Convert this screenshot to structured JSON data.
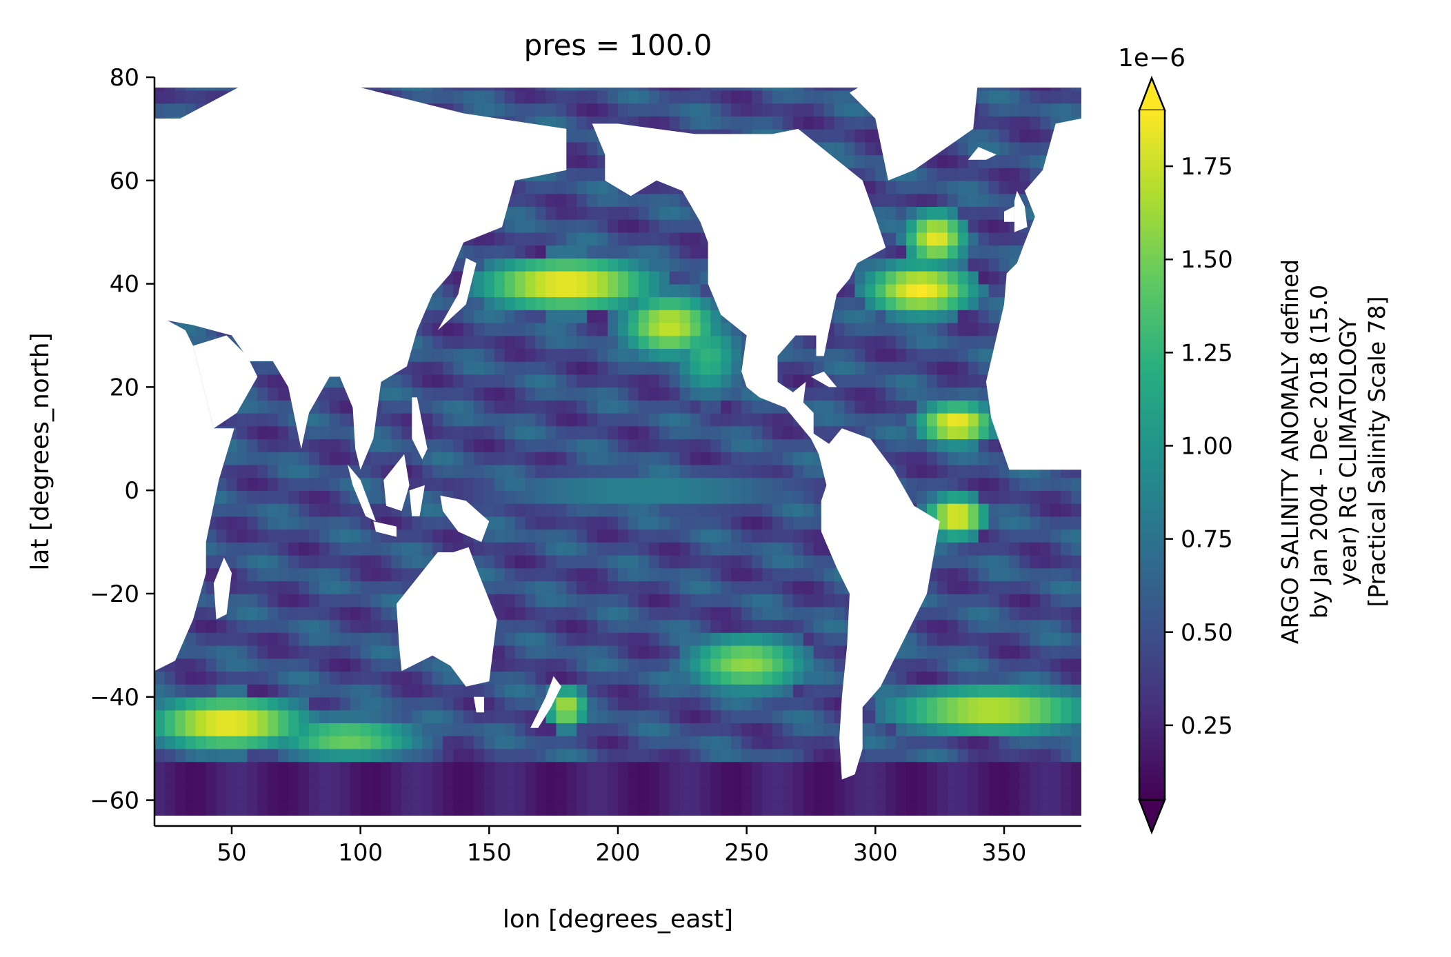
{
  "chart_data": {
    "type": "heatmap",
    "title": "pres = 100.0",
    "xlabel": "lon [degrees_east]",
    "ylabel": "lat [degrees_north]",
    "xlim": [
      20,
      380
    ],
    "ylim": [
      -65,
      80
    ],
    "xticks": [
      50,
      100,
      150,
      200,
      250,
      300,
      350
    ],
    "yticks": [
      -60,
      -40,
      -20,
      0,
      20,
      40,
      60,
      80
    ],
    "grid": false,
    "colorbar": {
      "label_lines": [
        "ARGO SALINITY ANOMALY defined",
        "by Jan 2004 - Dec 2018 (15.0",
        "year) RG CLIMATOLOGY",
        "[Practical Salinity Scale 78]"
      ],
      "multiplier": "1e−6",
      "ticks": [
        0.25,
        0.5,
        0.75,
        1.0,
        1.25,
        1.5,
        1.75
      ],
      "tick_labels": [
        "0.25",
        "0.50",
        "0.75",
        "1.00",
        "1.25",
        "1.50",
        "1.75"
      ],
      "vmin": 0.05,
      "vmax": 1.9,
      "extend": "both",
      "colormap": "viridis"
    },
    "land_masses": [
      {
        "name": "Africa",
        "polygon": [
          [
            -17,
            21
          ],
          [
            -10,
            36
          ],
          [
            10,
            37
          ],
          [
            32,
            31
          ],
          [
            35,
            28
          ],
          [
            43,
            12
          ],
          [
            51,
            12
          ],
          [
            45,
            2
          ],
          [
            40,
            -10
          ],
          [
            40,
            -16
          ],
          [
            35,
            -25
          ],
          [
            28,
            -33
          ],
          [
            20,
            -35
          ],
          [
            18,
            -30
          ],
          [
            12,
            -18
          ],
          [
            9,
            -1
          ],
          [
            -8,
            4
          ],
          [
            -17,
            14
          ]
        ]
      },
      {
        "name": "Madagascar",
        "polygon": [
          [
            47,
            -13
          ],
          [
            50,
            -16
          ],
          [
            48,
            -24
          ],
          [
            44,
            -25
          ],
          [
            43,
            -18
          ]
        ]
      },
      {
        "name": "Arabia",
        "polygon": [
          [
            35,
            28
          ],
          [
            48,
            30
          ],
          [
            56,
            26
          ],
          [
            60,
            22
          ],
          [
            52,
            15
          ],
          [
            43,
            12
          ]
        ]
      },
      {
        "name": "Eurasia",
        "polygon": [
          [
            -10,
            36
          ],
          [
            -10,
            72
          ],
          [
            30,
            72
          ],
          [
            60,
            80
          ],
          [
            100,
            78
          ],
          [
            140,
            73
          ],
          [
            180,
            70
          ],
          [
            180,
            62
          ],
          [
            160,
            60
          ],
          [
            155,
            51
          ],
          [
            140,
            48
          ],
          [
            135,
            42
          ],
          [
            128,
            38
          ],
          [
            122,
            31
          ],
          [
            118,
            24
          ],
          [
            108,
            21
          ],
          [
            105,
            10
          ],
          [
            100,
            4
          ],
          [
            98,
            8
          ],
          [
            97,
            16
          ],
          [
            92,
            22
          ],
          [
            88,
            22
          ],
          [
            80,
            15
          ],
          [
            77,
            8
          ],
          [
            72,
            20
          ],
          [
            66,
            25
          ],
          [
            57,
            25
          ],
          [
            50,
            30
          ],
          [
            35,
            32
          ]
        ]
      },
      {
        "name": "Japan",
        "polygon": [
          [
            130,
            31
          ],
          [
            141,
            36
          ],
          [
            145,
            44
          ],
          [
            141,
            45
          ],
          [
            138,
            38
          ]
        ]
      },
      {
        "name": "Borneo",
        "polygon": [
          [
            109,
            2
          ],
          [
            117,
            7
          ],
          [
            119,
            1
          ],
          [
            116,
            -4
          ],
          [
            110,
            -3
          ]
        ]
      },
      {
        "name": "Sumatra",
        "polygon": [
          [
            95,
            5
          ],
          [
            100,
            2
          ],
          [
            106,
            -6
          ],
          [
            102,
            -5
          ],
          [
            97,
            1
          ]
        ]
      },
      {
        "name": "Java",
        "polygon": [
          [
            105,
            -6
          ],
          [
            114,
            -7
          ],
          [
            114,
            -9
          ],
          [
            106,
            -8
          ]
        ]
      },
      {
        "name": "Sulawesi",
        "polygon": [
          [
            119,
            0
          ],
          [
            125,
            1
          ],
          [
            123,
            -5
          ],
          [
            120,
            -5
          ]
        ]
      },
      {
        "name": "Philippines",
        "polygon": [
          [
            120,
            18
          ],
          [
            122,
            18
          ],
          [
            126,
            8
          ],
          [
            124,
            6
          ],
          [
            120,
            10
          ]
        ]
      },
      {
        "name": "New Guinea",
        "polygon": [
          [
            131,
            -1
          ],
          [
            141,
            -2
          ],
          [
            150,
            -6
          ],
          [
            147,
            -10
          ],
          [
            138,
            -8
          ],
          [
            132,
            -4
          ]
        ]
      },
      {
        "name": "Australia",
        "polygon": [
          [
            114,
            -22
          ],
          [
            122,
            -17
          ],
          [
            130,
            -12
          ],
          [
            136,
            -12
          ],
          [
            142,
            -11
          ],
          [
            145,
            -15
          ],
          [
            153,
            -25
          ],
          [
            150,
            -37
          ],
          [
            141,
            -38
          ],
          [
            135,
            -34
          ],
          [
            128,
            -32
          ],
          [
            116,
            -35
          ],
          [
            115,
            -30
          ]
        ]
      },
      {
        "name": "Tasmania",
        "polygon": [
          [
            144,
            -40
          ],
          [
            148,
            -40
          ],
          [
            148,
            -43
          ],
          [
            145,
            -43
          ]
        ]
      },
      {
        "name": "New Zealand",
        "polygon": [
          [
            166,
            -46
          ],
          [
            172,
            -40
          ],
          [
            175,
            -36
          ],
          [
            178,
            -38
          ],
          [
            174,
            -42
          ],
          [
            169,
            -46
          ]
        ]
      },
      {
        "name": "Antarctica",
        "polygon": [
          [
            20,
            -65
          ],
          [
            380,
            -65
          ],
          [
            380,
            -63
          ],
          [
            20,
            -63
          ]
        ]
      },
      {
        "name": "Americas",
        "polygon": [
          [
            190,
            71
          ],
          [
            200,
            71
          ],
          [
            230,
            69
          ],
          [
            260,
            69
          ],
          [
            270,
            70
          ],
          [
            280,
            66
          ],
          [
            295,
            60
          ],
          [
            300,
            53
          ],
          [
            304,
            47
          ],
          [
            293,
            44
          ],
          [
            290,
            41
          ],
          [
            285,
            38
          ],
          [
            282,
            31
          ],
          [
            280,
            26
          ],
          [
            277,
            26
          ],
          [
            277,
            30
          ],
          [
            269,
            30
          ],
          [
            262,
            26
          ],
          [
            262,
            21
          ],
          [
            268,
            19
          ],
          [
            273,
            21
          ],
          [
            272,
            17
          ],
          [
            276,
            15
          ],
          [
            276,
            11
          ],
          [
            282,
            9
          ],
          [
            287,
            12
          ],
          [
            298,
            10
          ],
          [
            307,
            4
          ],
          [
            315,
            -3
          ],
          [
            325,
            -6
          ],
          [
            320,
            -20
          ],
          [
            313,
            -27
          ],
          [
            302,
            -38
          ],
          [
            295,
            -42
          ],
          [
            295,
            -50
          ],
          [
            292,
            -55
          ],
          [
            287,
            -56
          ],
          [
            286,
            -48
          ],
          [
            287,
            -40
          ],
          [
            289,
            -30
          ],
          [
            290,
            -20
          ],
          [
            285,
            -15
          ],
          [
            279,
            -8
          ],
          [
            279,
            -2
          ],
          [
            281,
            1
          ],
          [
            278,
            7
          ],
          [
            275,
            10
          ],
          [
            270,
            13
          ],
          [
            265,
            16
          ],
          [
            255,
            18
          ],
          [
            250,
            20
          ],
          [
            248,
            23
          ],
          [
            250,
            30
          ],
          [
            240,
            34
          ],
          [
            235,
            40
          ],
          [
            235,
            48
          ],
          [
            232,
            52
          ],
          [
            225,
            58
          ],
          [
            215,
            60
          ],
          [
            205,
            57
          ],
          [
            195,
            60
          ],
          [
            195,
            65
          ]
        ]
      },
      {
        "name": "Cuba",
        "polygon": [
          [
            275,
            22
          ],
          [
            280,
            23
          ],
          [
            285,
            20
          ],
          [
            282,
            20
          ]
        ]
      },
      {
        "name": "Greenland",
        "polygon": [
          [
            305,
            60
          ],
          [
            315,
            62
          ],
          [
            338,
            70
          ],
          [
            340,
            80
          ],
          [
            300,
            80
          ],
          [
            290,
            77
          ],
          [
            300,
            72
          ]
        ]
      },
      {
        "name": "Iceland",
        "polygon": [
          [
            336,
            64
          ],
          [
            343,
            64
          ],
          [
            347,
            65
          ],
          [
            340,
            66.5
          ]
        ]
      },
      {
        "name": "Britain",
        "polygon": [
          [
            354,
            50
          ],
          [
            359,
            51
          ],
          [
            358,
            55
          ],
          [
            355,
            58
          ],
          [
            354,
            56
          ]
        ]
      },
      {
        "name": "Ireland",
        "polygon": [
          [
            350,
            52
          ],
          [
            354,
            52
          ],
          [
            354,
            55
          ],
          [
            350,
            54
          ]
        ]
      },
      {
        "name": "Europe",
        "polygon": [
          [
            350,
            36
          ],
          [
            380,
            36
          ],
          [
            380,
            72
          ],
          [
            370,
            71
          ],
          [
            365,
            62
          ],
          [
            358,
            58
          ],
          [
            362,
            53
          ],
          [
            358,
            48
          ],
          [
            355,
            44
          ],
          [
            351,
            42
          ]
        ]
      },
      {
        "name": "Africa-West",
        "polygon": [
          [
            343,
            21
          ],
          [
            350,
            36
          ],
          [
            380,
            37
          ],
          [
            380,
            4
          ],
          [
            352,
            4
          ],
          [
            345,
            14
          ]
        ]
      },
      {
        "name": "Baltic/Black/Caspian",
        "polygon": []
      }
    ],
    "salinity_features": [
      {
        "name": "North Pacific subtropical front",
        "lon": [
          150,
          210
        ],
        "lat": [
          37,
          43
        ],
        "level": 1.9
      },
      {
        "name": "NE Pacific front",
        "lon": [
          205,
          235
        ],
        "lat": [
          28,
          36
        ],
        "level": 1.75
      },
      {
        "name": "California Current",
        "lon": [
          225,
          245
        ],
        "lat": [
          20,
          32
        ],
        "level": 1.25
      },
      {
        "name": "Gulf Stream",
        "lon": [
          300,
          335
        ],
        "lat": [
          36,
          42
        ],
        "level": 1.9
      },
      {
        "name": "Gulf Stream extension",
        "lon": [
          315,
          332
        ],
        "lat": [
          46,
          52
        ],
        "level": 1.85
      },
      {
        "name": "North Atlantic tropical front",
        "lon": [
          320,
          343
        ],
        "lat": [
          11,
          15
        ],
        "level": 1.9
      },
      {
        "name": "Equatorial Atlantic",
        "lon": [
          323,
          340
        ],
        "lat": [
          -7,
          -3
        ],
        "level": 1.9
      },
      {
        "name": "Indian Ocean subantarctic front",
        "lon": [
          22,
          75
        ],
        "lat": [
          -48,
          -42
        ],
        "level": 1.9
      },
      {
        "name": "Indian Ocean secondary front",
        "lon": [
          70,
          120
        ],
        "lat": [
          -50,
          -46
        ],
        "level": 1.5
      },
      {
        "name": "South Pacific subtropical",
        "lon": [
          230,
          270
        ],
        "lat": [
          -37,
          -30
        ],
        "level": 1.6
      },
      {
        "name": "South Atlantic front",
        "lon": [
          310,
          380
        ],
        "lat": [
          -45,
          -40
        ],
        "level": 1.75
      },
      {
        "name": "Tasman front",
        "lon": [
          175,
          185
        ],
        "lat": [
          -44,
          -40
        ],
        "level": 1.7
      },
      {
        "name": "Equatorial Pacific",
        "lon": [
          150,
          270
        ],
        "lat": [
          -2,
          2
        ],
        "level": 0.9
      }
    ]
  }
}
